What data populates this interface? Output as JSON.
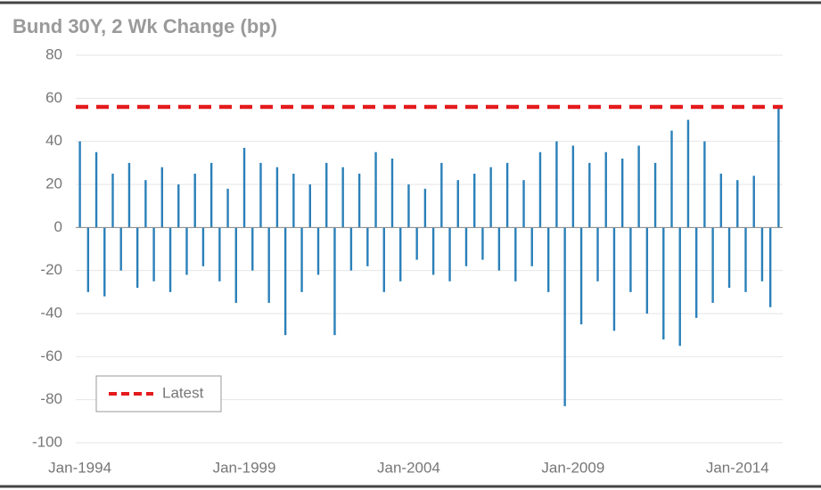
{
  "chart_data": {
    "type": "bar",
    "title": "Bund 30Y, 2 Wk Change (bp)",
    "categories": [
      "Jan-1994",
      null,
      null,
      null,
      null,
      null,
      null,
      null,
      null,
      null,
      null,
      null,
      null,
      null,
      null,
      null,
      null,
      null,
      null,
      null,
      "Jan-1999",
      null,
      null,
      null,
      null,
      null,
      null,
      null,
      null,
      null,
      null,
      null,
      null,
      null,
      null,
      null,
      null,
      null,
      null,
      null,
      "Jan-2004",
      null,
      null,
      null,
      null,
      null,
      null,
      null,
      null,
      null,
      null,
      null,
      null,
      null,
      null,
      null,
      null,
      null,
      null,
      null,
      "Jan-2009",
      null,
      null,
      null,
      null,
      null,
      null,
      null,
      null,
      null,
      null,
      null,
      null,
      null,
      null,
      null,
      null,
      null,
      null,
      null,
      "Jan-2014",
      null,
      null,
      null,
      null,
      null
    ],
    "values": [
      40,
      -30,
      35,
      -32,
      25,
      -20,
      30,
      -28,
      22,
      -25,
      28,
      -30,
      20,
      -22,
      25,
      -18,
      30,
      -25,
      18,
      -35,
      37,
      -20,
      30,
      -35,
      28,
      -50,
      25,
      -30,
      20,
      -22,
      30,
      -50,
      28,
      -20,
      25,
      -18,
      35,
      -30,
      32,
      -25,
      20,
      -15,
      18,
      -22,
      30,
      -25,
      22,
      -18,
      25,
      -15,
      28,
      -20,
      30,
      -25,
      22,
      -18,
      35,
      -30,
      40,
      -83,
      38,
      -45,
      30,
      -25,
      35,
      -48,
      32,
      -30,
      38,
      -40,
      30,
      -52,
      45,
      -55,
      50,
      -42,
      40,
      -35,
      25,
      -28,
      22,
      -30,
      24,
      -25,
      -37,
      56
    ],
    "color": "#2b80b9",
    "latest": {
      "name": "Latest",
      "value": 56,
      "color": "#e41a1c"
    },
    "ylim": [
      -100,
      80
    ],
    "yticks": [
      -100,
      -80,
      -60,
      -40,
      -20,
      0,
      20,
      40,
      60,
      80
    ],
    "grid": true,
    "legend": "lower left"
  }
}
